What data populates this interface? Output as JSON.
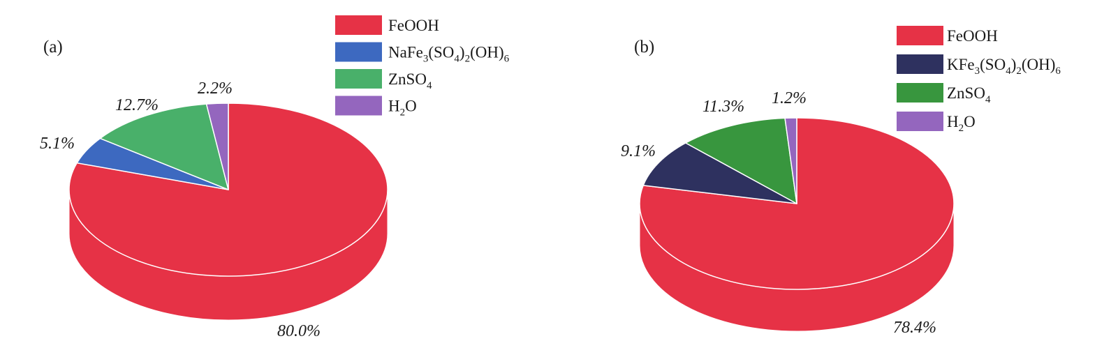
{
  "chart_data": [
    {
      "type": "pie",
      "panel_label": "(a)",
      "slices": [
        {
          "name": "FeOOH",
          "value": 80.0,
          "label": "80.0%",
          "color": "#e63246"
        },
        {
          "name": "NaFe3(SO4)2(OH)6",
          "value": 5.1,
          "label": "5.1%",
          "color": "#3d69c0"
        },
        {
          "name": "ZnSO4",
          "value": 12.7,
          "label": "12.7%",
          "color": "#49b06a"
        },
        {
          "name": "H2O",
          "value": 2.2,
          "label": "2.2%",
          "color": "#9466be"
        }
      ],
      "legend": [
        {
          "parts": [
            {
              "t": "FeOOH"
            }
          ]
        },
        {
          "parts": [
            {
              "t": "NaFe"
            },
            {
              "t": "3",
              "sub": true
            },
            {
              "t": "(SO"
            },
            {
              "t": "4",
              "sub": true
            },
            {
              "t": ")"
            },
            {
              "t": "2",
              "sub": true
            },
            {
              "t": "(OH)"
            },
            {
              "t": "6",
              "sub": true
            }
          ]
        },
        {
          "parts": [
            {
              "t": "ZnSO"
            },
            {
              "t": "4",
              "sub": true
            }
          ]
        },
        {
          "parts": [
            {
              "t": "H"
            },
            {
              "t": "2",
              "sub": true
            },
            {
              "t": "O"
            }
          ]
        }
      ],
      "legend_position": "top-right",
      "style": "3d"
    },
    {
      "type": "pie",
      "panel_label": "(b)",
      "slices": [
        {
          "name": "FeOOH",
          "value": 78.4,
          "label": "78.4%",
          "color": "#e63246"
        },
        {
          "name": "KFe3(SO4)2(OH)6",
          "value": 9.1,
          "label": "9.1%",
          "color": "#2e315f"
        },
        {
          "name": "ZnSO4",
          "value": 11.3,
          "label": "11.3%",
          "color": "#38963e"
        },
        {
          "name": "H2O",
          "value": 1.2,
          "label": "1.2%",
          "color": "#9466be"
        }
      ],
      "legend": [
        {
          "parts": [
            {
              "t": "FeOOH"
            }
          ]
        },
        {
          "parts": [
            {
              "t": "KFe"
            },
            {
              "t": "3",
              "sub": true
            },
            {
              "t": "(SO"
            },
            {
              "t": "4",
              "sub": true
            },
            {
              "t": ")"
            },
            {
              "t": "2",
              "sub": true
            },
            {
              "t": "(OH)"
            },
            {
              "t": "6",
              "sub": true
            }
          ]
        },
        {
          "parts": [
            {
              "t": "ZnSO"
            },
            {
              "t": "4",
              "sub": true
            }
          ]
        },
        {
          "parts": [
            {
              "t": "H"
            },
            {
              "t": "2",
              "sub": true
            },
            {
              "t": "O"
            }
          ]
        }
      ],
      "legend_position": "top-right",
      "style": "3d"
    }
  ]
}
